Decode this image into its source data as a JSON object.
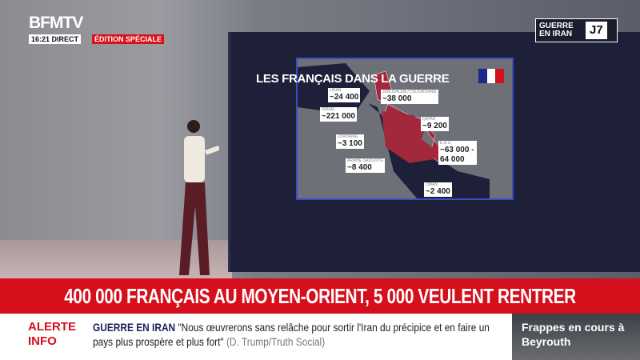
{
  "channel": {
    "logo": "BFMTV",
    "time": "16:21",
    "live": "DIRECT",
    "edition": "ÉDITION SPÉCIALE"
  },
  "tag": {
    "text": "GUERRE EN IRAN",
    "day": "J7"
  },
  "map": {
    "title": "LES FRANÇAIS DANS LA GUERRE",
    "colors": {
      "highlight": "#a3283c",
      "land": "#6e7078",
      "sea": "#1d2038"
    },
    "labels": [
      {
        "country": "LIBAN",
        "value": "~24 400"
      },
      {
        "country": "ISRAËL",
        "value": "~221 000"
      },
      {
        "country": "JÉRUSALEM / CISJORDANIE",
        "value": "~38 000"
      },
      {
        "country": "JORDANIE",
        "value": "~3 100"
      },
      {
        "country": "QATAR",
        "value": "~9 200"
      },
      {
        "country": "E.A.U.",
        "value": "~63 000 - 64 000"
      },
      {
        "country": "ARABIE SAOUDITE",
        "value": "~8 400"
      },
      {
        "country": "OMAN",
        "value": "~2 400"
      }
    ]
  },
  "headline": "400 000 FRANÇAIS AU MOYEN-ORIENT, 5 000 VEULENT RENTRER",
  "ticker": {
    "alert": "ALERTE INFO",
    "topic": "GUERRE EN IRAN",
    "quote": "\"Nous œuvrerons sans relâche pour sortir l'Iran du précipice et en faire un pays plus prospère et plus fort\"",
    "source": "(D. Trump/Truth Social)"
  },
  "side": "Frappes en cours à Beyrouth",
  "accent": "#d50f1c"
}
